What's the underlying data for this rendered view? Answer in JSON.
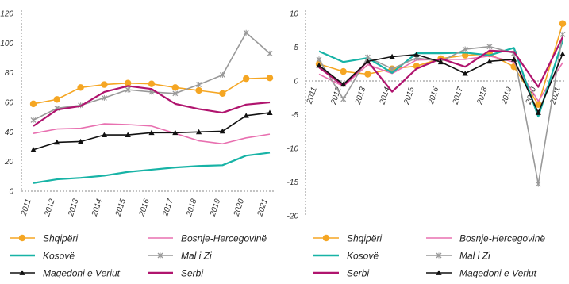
{
  "chart_data": [
    {
      "type": "line",
      "x": [
        "2011",
        "2012",
        "2013",
        "2014",
        "2015",
        "2016",
        "2017",
        "2018",
        "2019",
        "2020",
        "2021"
      ],
      "ylim": [
        0,
        120
      ],
      "yticks": [
        0,
        20,
        40,
        60,
        80,
        100,
        120
      ],
      "legend_position": "bottom",
      "series": [
        {
          "name": "Shqipëri",
          "color": "#F5A623",
          "marker": "circle",
          "values": [
            59,
            62,
            70,
            72,
            73,
            72.5,
            70,
            68,
            66,
            76,
            76.5
          ]
        },
        {
          "name": "Bosnje-Hercegovinë",
          "color": "#E870B0",
          "marker": "none",
          "values": [
            39,
            42,
            42.5,
            45.5,
            45,
            44,
            39,
            34,
            32,
            36,
            38.5
          ]
        },
        {
          "name": "Kosovë",
          "color": "#17B3A6",
          "marker": "none",
          "values": [
            5.5,
            8,
            9,
            10.5,
            13,
            14.5,
            16,
            17,
            17.5,
            24,
            26
          ]
        },
        {
          "name": "Mal i Zi",
          "color": "#999999",
          "marker": "x",
          "values": [
            48,
            56,
            58,
            63,
            68.5,
            67,
            66,
            72,
            78.5,
            107,
            93
          ]
        },
        {
          "name": "Maqedoni e Veriut",
          "color": "#111111",
          "marker": "triangle",
          "values": [
            28,
            33,
            33.5,
            38,
            38,
            39.5,
            39.5,
            40,
            40.5,
            51,
            53
          ]
        },
        {
          "name": "Serbi",
          "color": "#B0146E",
          "marker": "none",
          "values": [
            44,
            55,
            57.5,
            67,
            71,
            69,
            59,
            55.5,
            53,
            58.5,
            60
          ]
        }
      ]
    },
    {
      "type": "line",
      "x": [
        "2011",
        "2012",
        "2013",
        "2014",
        "2015",
        "2016",
        "2017",
        "2018",
        "2019",
        "2020",
        "2021"
      ],
      "ylim": [
        -20,
        10
      ],
      "yticks": [
        -20,
        -15,
        -10,
        -5,
        0,
        5,
        10
      ],
      "legend_position": "bottom",
      "series": [
        {
          "name": "Shqipëri",
          "color": "#F5A623",
          "marker": "circle",
          "values": [
            2.5,
            1.4,
            1.0,
            1.8,
            2.2,
            3.3,
            3.8,
            4.0,
            2.1,
            -3.5,
            8.5
          ]
        },
        {
          "name": "Bosnje-Hercegovinë",
          "color": "#E870B0",
          "marker": "none",
          "values": [
            1.0,
            -0.8,
            2.4,
            1.1,
            3.1,
            3.2,
            3.2,
            3.7,
            2.8,
            -3.0,
            2.7
          ]
        },
        {
          "name": "Kosovë",
          "color": "#17B3A6",
          "marker": "none",
          "values": [
            4.4,
            2.8,
            3.4,
            1.2,
            4.1,
            4.1,
            4.2,
            3.8,
            4.9,
            -5.3,
            6.0
          ]
        },
        {
          "name": "Mal i Zi",
          "color": "#999999",
          "marker": "x",
          "values": [
            3.2,
            -2.7,
            3.5,
            1.8,
            3.4,
            2.9,
            4.7,
            5.1,
            4.1,
            -15.3,
            6.9
          ]
        },
        {
          "name": "Serbi",
          "color": "#B0146E",
          "marker": "none",
          "values": [
            2.0,
            -0.7,
            2.9,
            -1.6,
            1.8,
            3.3,
            2.1,
            4.5,
            4.3,
            -0.9,
            6.5
          ]
        },
        {
          "name": "Maqedoni e Veriut",
          "color": "#111111",
          "marker": "triangle",
          "values": [
            2.3,
            -0.5,
            2.9,
            3.6,
            3.9,
            2.8,
            1.1,
            2.9,
            3.2,
            -4.7,
            4.0
          ]
        }
      ]
    }
  ]
}
